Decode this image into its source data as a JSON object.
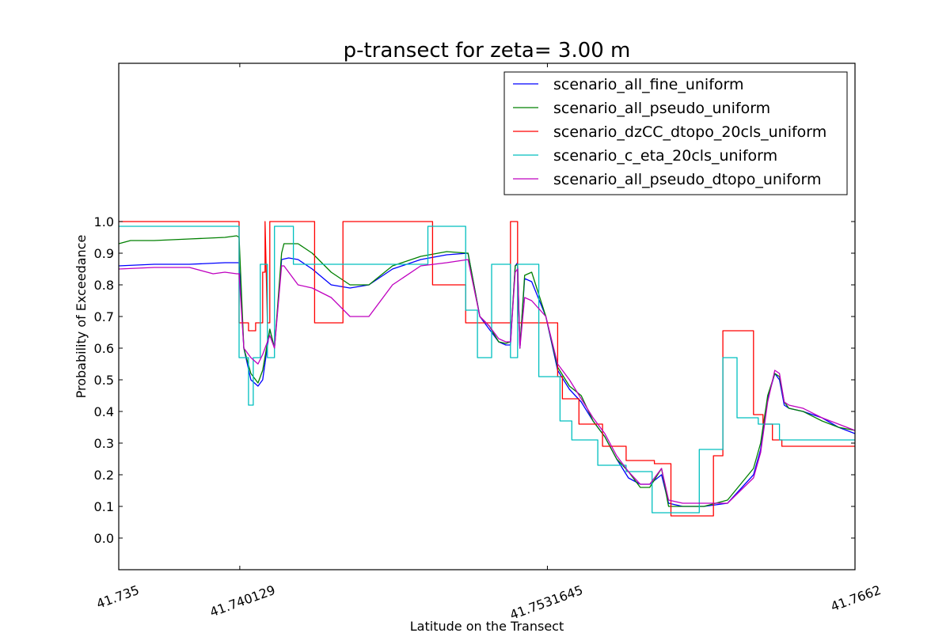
{
  "chart_data": {
    "type": "line",
    "title": "p-transect for zeta= 3.00 m",
    "xlabel": "Latitude on the Transect",
    "ylabel": "Probability of Exceedance",
    "xlim": [
      41.735,
      41.7662
    ],
    "ylim": [
      -0.1,
      1.5
    ],
    "x_ticks": [
      41.735,
      41.740129,
      41.7531645,
      41.7662
    ],
    "x_tick_labels": [
      "41.735",
      "41.740129",
      "41.7531645",
      "41.7662"
    ],
    "y_ticks": [
      0.0,
      0.1,
      0.2,
      0.3,
      0.4,
      0.5,
      0.6,
      0.7,
      0.8,
      0.9,
      1.0
    ],
    "y_tick_labels": [
      "0.0",
      "0.1",
      "0.2",
      "0.3",
      "0.4",
      "0.5",
      "0.6",
      "0.7",
      "0.8",
      "0.9",
      "1.0"
    ],
    "grid": false,
    "legend_position": "top-right",
    "series": [
      {
        "name": "scenario_all_fine_uniform",
        "color": "#0000ff",
        "x": [
          41.735,
          41.7365,
          41.738,
          41.7395,
          41.7401,
          41.7403,
          41.7406,
          41.7409,
          41.7411,
          41.7414,
          41.7416,
          41.7419,
          41.7422,
          41.7426,
          41.7432,
          41.744,
          41.7448,
          41.7456,
          41.7466,
          41.7478,
          41.7489,
          41.7498,
          41.7503,
          41.7507,
          41.7511,
          41.7514,
          41.7516,
          41.7518,
          41.7519,
          41.752,
          41.7522,
          41.7525,
          41.7531,
          41.7536,
          41.7541,
          41.7546,
          41.7551,
          41.7556,
          41.7561,
          41.7566,
          41.7571,
          41.7575,
          41.758,
          41.7583,
          41.7589,
          41.7598,
          41.7608,
          41.7619,
          41.7622,
          41.7625,
          41.7628,
          41.763,
          41.7632,
          41.7634,
          41.764,
          41.7648,
          41.7655,
          41.7662
        ],
        "y": [
          0.86,
          0.865,
          0.865,
          0.87,
          0.87,
          0.6,
          0.5,
          0.48,
          0.5,
          0.66,
          0.6,
          0.88,
          0.885,
          0.88,
          0.85,
          0.8,
          0.79,
          0.8,
          0.85,
          0.88,
          0.895,
          0.9,
          0.7,
          0.66,
          0.62,
          0.61,
          0.61,
          0.86,
          0.87,
          0.6,
          0.82,
          0.81,
          0.7,
          0.53,
          0.47,
          0.43,
          0.37,
          0.32,
          0.25,
          0.19,
          0.17,
          0.17,
          0.2,
          0.11,
          0.1,
          0.1,
          0.11,
          0.2,
          0.28,
          0.44,
          0.52,
          0.5,
          0.42,
          0.41,
          0.4,
          0.38,
          0.35,
          0.33
        ]
      },
      {
        "name": "scenario_all_pseudo_uniform",
        "color": "#008000",
        "x": [
          41.735,
          41.7355,
          41.7365,
          41.738,
          41.7395,
          41.74,
          41.7401,
          41.7403,
          41.7406,
          41.7409,
          41.7411,
          41.7414,
          41.7416,
          41.7419,
          41.742,
          41.7426,
          41.7432,
          41.744,
          41.7448,
          41.7456,
          41.7466,
          41.7478,
          41.7489,
          41.7498,
          41.7503,
          41.7507,
          41.7511,
          41.7514,
          41.7516,
          41.7518,
          41.7519,
          41.752,
          41.7522,
          41.7525,
          41.7531,
          41.7536,
          41.7541,
          41.7546,
          41.7551,
          41.7556,
          41.7561,
          41.7566,
          41.7571,
          41.7575,
          41.758,
          41.7583,
          41.7589,
          41.7598,
          41.7608,
          41.7619,
          41.7622,
          41.7625,
          41.7628,
          41.763,
          41.7632,
          41.7634,
          41.764,
          41.7648,
          41.7655,
          41.7662
        ],
        "y": [
          0.93,
          0.94,
          0.94,
          0.945,
          0.95,
          0.955,
          0.95,
          0.6,
          0.52,
          0.49,
          0.53,
          0.66,
          0.6,
          0.9,
          0.93,
          0.93,
          0.9,
          0.84,
          0.8,
          0.8,
          0.86,
          0.89,
          0.905,
          0.9,
          0.7,
          0.67,
          0.62,
          0.615,
          0.62,
          0.86,
          0.865,
          0.6,
          0.83,
          0.84,
          0.7,
          0.54,
          0.48,
          0.45,
          0.37,
          0.32,
          0.25,
          0.21,
          0.16,
          0.16,
          0.22,
          0.1,
          0.1,
          0.1,
          0.12,
          0.22,
          0.3,
          0.45,
          0.52,
          0.51,
          0.43,
          0.41,
          0.4,
          0.37,
          0.35,
          0.34
        ]
      },
      {
        "name": "scenario_dzCC_dtopo_20cls_uniform",
        "color": "#ff0000",
        "x": [
          41.735,
          41.7401,
          41.7401,
          41.7405,
          41.7405,
          41.7408,
          41.7408,
          41.7411,
          41.7411,
          41.7412,
          41.7412,
          41.7412,
          41.7413,
          41.7414,
          41.7414,
          41.7416,
          41.7416,
          41.7433,
          41.7433,
          41.7445,
          41.7445,
          41.7483,
          41.7483,
          41.7497,
          41.7497,
          41.7516,
          41.7516,
          41.7519,
          41.7519,
          41.7536,
          41.7536,
          41.7538,
          41.7538,
          41.7545,
          41.7545,
          41.7555,
          41.7555,
          41.7565,
          41.7565,
          41.7577,
          41.7577,
          41.7584,
          41.7584,
          41.7602,
          41.7602,
          41.7606,
          41.7606,
          41.7619,
          41.7619,
          41.7623,
          41.7623,
          41.7627,
          41.7627,
          41.7631,
          41.7631,
          41.7662
        ],
        "y": [
          1.0,
          1.0,
          0.68,
          0.68,
          0.655,
          0.655,
          0.68,
          0.68,
          0.84,
          0.84,
          1.0,
          1.0,
          0.68,
          0.68,
          1.0,
          1.0,
          1.0,
          1.0,
          0.68,
          0.68,
          1.0,
          1.0,
          0.8,
          0.8,
          0.68,
          0.68,
          1.0,
          1.0,
          0.68,
          0.68,
          0.51,
          0.51,
          0.44,
          0.44,
          0.36,
          0.36,
          0.29,
          0.29,
          0.245,
          0.245,
          0.235,
          0.235,
          0.07,
          0.07,
          0.26,
          0.26,
          0.655,
          0.655,
          0.39,
          0.39,
          0.36,
          0.36,
          0.31,
          0.31,
          0.29,
          0.29
        ]
      },
      {
        "name": "scenario_c_eta_20cls_uniform",
        "color": "#00bfbf",
        "x": [
          41.735,
          41.7401,
          41.7401,
          41.7405,
          41.7405,
          41.7407,
          41.7407,
          41.741,
          41.741,
          41.7413,
          41.7413,
          41.7416,
          41.7416,
          41.7424,
          41.7424,
          41.7481,
          41.7481,
          41.7497,
          41.7497,
          41.7502,
          41.7502,
          41.7508,
          41.7508,
          41.7516,
          41.7516,
          41.7519,
          41.7519,
          41.7528,
          41.7528,
          41.7537,
          41.7537,
          41.7542,
          41.7542,
          41.7553,
          41.7553,
          41.7565,
          41.7565,
          41.7576,
          41.7576,
          41.7588,
          41.7588,
          41.7596,
          41.7596,
          41.7606,
          41.7606,
          41.7612,
          41.7612,
          41.7621,
          41.7621,
          41.763,
          41.763,
          41.7662
        ],
        "y": [
          0.985,
          0.985,
          0.57,
          0.57,
          0.42,
          0.42,
          0.57,
          0.57,
          0.865,
          0.865,
          0.57,
          0.57,
          0.985,
          0.985,
          0.865,
          0.865,
          0.985,
          0.985,
          0.72,
          0.72,
          0.57,
          0.57,
          0.865,
          0.865,
          0.57,
          0.57,
          0.865,
          0.865,
          0.51,
          0.51,
          0.37,
          0.37,
          0.31,
          0.31,
          0.23,
          0.23,
          0.21,
          0.21,
          0.08,
          0.08,
          0.08,
          0.08,
          0.28,
          0.28,
          0.57,
          0.57,
          0.38,
          0.38,
          0.36,
          0.36,
          0.31,
          0.31
        ]
      },
      {
        "name": "scenario_all_pseudo_dtopo_uniform",
        "color": "#bf00bf",
        "x": [
          41.735,
          41.7365,
          41.738,
          41.739,
          41.7395,
          41.74,
          41.7401,
          41.7403,
          41.7406,
          41.7409,
          41.7411,
          41.7414,
          41.7416,
          41.7419,
          41.742,
          41.7426,
          41.7432,
          41.744,
          41.7448,
          41.7456,
          41.7466,
          41.7478,
          41.7489,
          41.7498,
          41.7503,
          41.7507,
          41.7511,
          41.7514,
          41.7516,
          41.7518,
          41.7519,
          41.752,
          41.7522,
          41.7525,
          41.7531,
          41.7536,
          41.7541,
          41.7546,
          41.7551,
          41.7556,
          41.7561,
          41.7566,
          41.7571,
          41.7575,
          41.758,
          41.7583,
          41.7589,
          41.7598,
          41.7608,
          41.7619,
          41.7622,
          41.7625,
          41.7628,
          41.763,
          41.7632,
          41.7634,
          41.764,
          41.7648,
          41.7655,
          41.7662
        ],
        "y": [
          0.85,
          0.855,
          0.855,
          0.835,
          0.84,
          0.835,
          0.835,
          0.6,
          0.57,
          0.55,
          0.58,
          0.64,
          0.6,
          0.86,
          0.86,
          0.8,
          0.79,
          0.76,
          0.7,
          0.7,
          0.8,
          0.86,
          0.87,
          0.88,
          0.7,
          0.67,
          0.63,
          0.62,
          0.62,
          0.84,
          0.85,
          0.6,
          0.76,
          0.75,
          0.7,
          0.55,
          0.5,
          0.44,
          0.38,
          0.33,
          0.26,
          0.21,
          0.17,
          0.17,
          0.22,
          0.12,
          0.11,
          0.11,
          0.11,
          0.19,
          0.27,
          0.43,
          0.53,
          0.52,
          0.43,
          0.42,
          0.41,
          0.38,
          0.36,
          0.34
        ]
      }
    ]
  }
}
